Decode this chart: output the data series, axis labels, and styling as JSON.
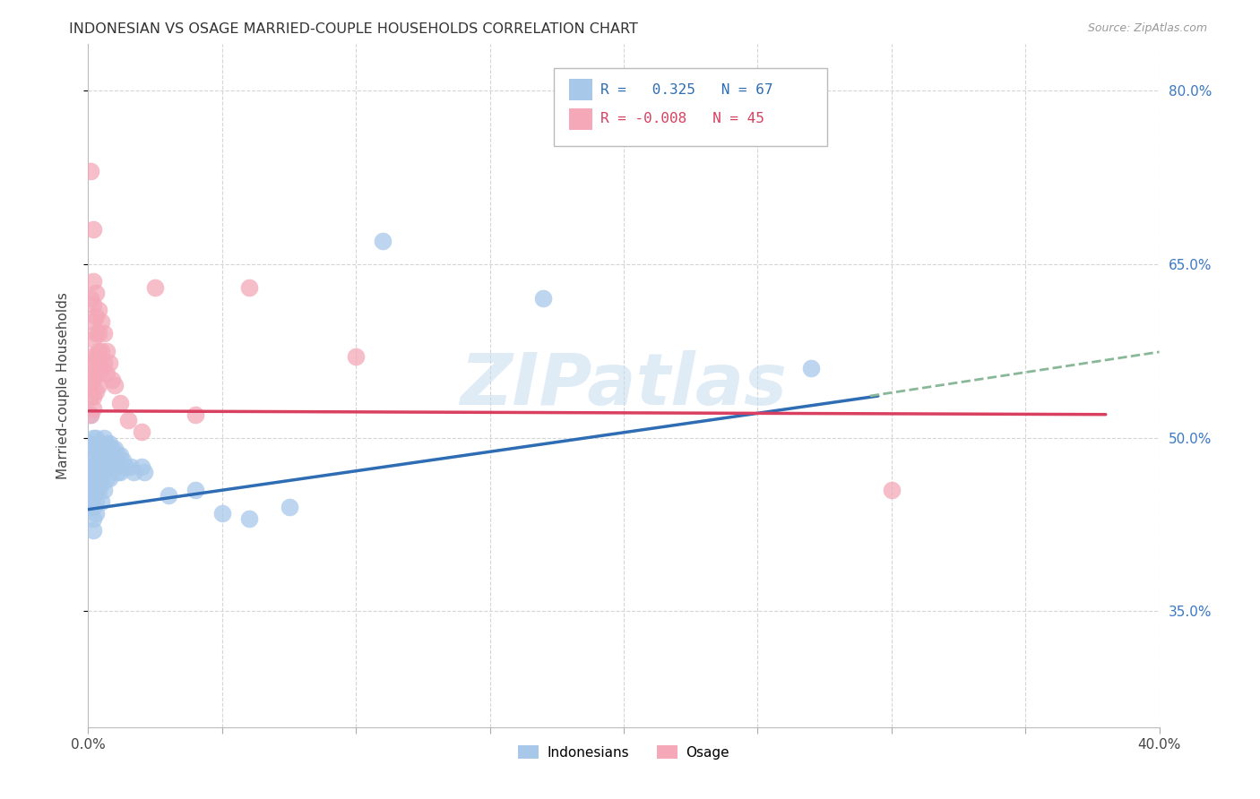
{
  "title": "INDONESIAN VS OSAGE MARRIED-COUPLE HOUSEHOLDS CORRELATION CHART",
  "source": "Source: ZipAtlas.com",
  "ylabel": "Married-couple Households",
  "r_indonesian": 0.325,
  "n_indonesian": 67,
  "r_osage": -0.008,
  "n_osage": 45,
  "xlim": [
    0.0,
    0.4
  ],
  "ylim": [
    0.25,
    0.84
  ],
  "color_indonesian": "#a8c8ea",
  "color_osage": "#f4a8b8",
  "line_color_indonesian": "#2e6db4",
  "line_color_osage": "#d94060",
  "line_color_extrapolated": "#88b898",
  "watermark_color": "#c5ddf0",
  "bg_color": "#ffffff",
  "grid_color": "#d5d5d5",
  "indonesian_points": [
    [
      0.001,
      0.52
    ],
    [
      0.001,
      0.495
    ],
    [
      0.001,
      0.485
    ],
    [
      0.001,
      0.48
    ],
    [
      0.001,
      0.475
    ],
    [
      0.001,
      0.47
    ],
    [
      0.001,
      0.465
    ],
    [
      0.001,
      0.46
    ],
    [
      0.001,
      0.455
    ],
    [
      0.001,
      0.45
    ],
    [
      0.001,
      0.445
    ],
    [
      0.001,
      0.44
    ],
    [
      0.002,
      0.5
    ],
    [
      0.002,
      0.49
    ],
    [
      0.002,
      0.475
    ],
    [
      0.002,
      0.46
    ],
    [
      0.002,
      0.45
    ],
    [
      0.002,
      0.44
    ],
    [
      0.002,
      0.43
    ],
    [
      0.002,
      0.42
    ],
    [
      0.003,
      0.5
    ],
    [
      0.003,
      0.49
    ],
    [
      0.003,
      0.475
    ],
    [
      0.003,
      0.465
    ],
    [
      0.003,
      0.455
    ],
    [
      0.003,
      0.445
    ],
    [
      0.003,
      0.435
    ],
    [
      0.004,
      0.495
    ],
    [
      0.004,
      0.48
    ],
    [
      0.004,
      0.465
    ],
    [
      0.004,
      0.455
    ],
    [
      0.005,
      0.49
    ],
    [
      0.005,
      0.475
    ],
    [
      0.005,
      0.46
    ],
    [
      0.005,
      0.445
    ],
    [
      0.006,
      0.5
    ],
    [
      0.006,
      0.485
    ],
    [
      0.006,
      0.47
    ],
    [
      0.006,
      0.455
    ],
    [
      0.007,
      0.495
    ],
    [
      0.007,
      0.48
    ],
    [
      0.007,
      0.465
    ],
    [
      0.008,
      0.495
    ],
    [
      0.008,
      0.48
    ],
    [
      0.008,
      0.465
    ],
    [
      0.009,
      0.49
    ],
    [
      0.009,
      0.475
    ],
    [
      0.01,
      0.49
    ],
    [
      0.01,
      0.475
    ],
    [
      0.011,
      0.485
    ],
    [
      0.011,
      0.47
    ],
    [
      0.012,
      0.485
    ],
    [
      0.012,
      0.47
    ],
    [
      0.013,
      0.48
    ],
    [
      0.014,
      0.475
    ],
    [
      0.016,
      0.475
    ],
    [
      0.017,
      0.47
    ],
    [
      0.02,
      0.475
    ],
    [
      0.021,
      0.47
    ],
    [
      0.03,
      0.45
    ],
    [
      0.04,
      0.455
    ],
    [
      0.05,
      0.435
    ],
    [
      0.06,
      0.43
    ],
    [
      0.075,
      0.44
    ],
    [
      0.11,
      0.67
    ],
    [
      0.17,
      0.62
    ],
    [
      0.27,
      0.56
    ]
  ],
  "osage_points": [
    [
      0.001,
      0.73
    ],
    [
      0.001,
      0.62
    ],
    [
      0.001,
      0.57
    ],
    [
      0.001,
      0.555
    ],
    [
      0.001,
      0.545
    ],
    [
      0.001,
      0.535
    ],
    [
      0.001,
      0.52
    ],
    [
      0.002,
      0.68
    ],
    [
      0.002,
      0.635
    ],
    [
      0.002,
      0.615
    ],
    [
      0.002,
      0.6
    ],
    [
      0.002,
      0.585
    ],
    [
      0.002,
      0.565
    ],
    [
      0.002,
      0.55
    ],
    [
      0.002,
      0.535
    ],
    [
      0.002,
      0.525
    ],
    [
      0.003,
      0.625
    ],
    [
      0.003,
      0.605
    ],
    [
      0.003,
      0.59
    ],
    [
      0.003,
      0.57
    ],
    [
      0.003,
      0.555
    ],
    [
      0.003,
      0.54
    ],
    [
      0.004,
      0.61
    ],
    [
      0.004,
      0.59
    ],
    [
      0.004,
      0.575
    ],
    [
      0.004,
      0.56
    ],
    [
      0.004,
      0.545
    ],
    [
      0.005,
      0.6
    ],
    [
      0.005,
      0.575
    ],
    [
      0.005,
      0.56
    ],
    [
      0.006,
      0.59
    ],
    [
      0.006,
      0.565
    ],
    [
      0.007,
      0.575
    ],
    [
      0.007,
      0.555
    ],
    [
      0.008,
      0.565
    ],
    [
      0.009,
      0.55
    ],
    [
      0.01,
      0.545
    ],
    [
      0.012,
      0.53
    ],
    [
      0.015,
      0.515
    ],
    [
      0.02,
      0.505
    ],
    [
      0.025,
      0.63
    ],
    [
      0.04,
      0.52
    ],
    [
      0.06,
      0.63
    ],
    [
      0.1,
      0.57
    ],
    [
      0.3,
      0.455
    ]
  ],
  "indonesian_line": [
    [
      0.0,
      0.438
    ],
    [
      0.295,
      0.536
    ]
  ],
  "osage_line": [
    [
      0.0,
      0.523
    ],
    [
      0.38,
      0.52
    ]
  ],
  "extrapolated_line": [
    [
      0.292,
      0.536
    ],
    [
      0.4,
      0.574
    ]
  ],
  "ytick_positions": [
    0.35,
    0.5,
    0.65,
    0.8
  ],
  "ytick_labels": [
    "35.0%",
    "50.0%",
    "65.0%",
    "80.0%"
  ],
  "xtick_positions": [
    0.0,
    0.05,
    0.1,
    0.15,
    0.2,
    0.25,
    0.3,
    0.35,
    0.4
  ],
  "xtick_labels": [
    "0.0%",
    "",
    "",
    "",
    "",
    "",
    "",
    "",
    "40.0%"
  ],
  "legend_r_blue_text": "R =   0.325   N = 67",
  "legend_r_pink_text": "R = -0.008   N = 45"
}
